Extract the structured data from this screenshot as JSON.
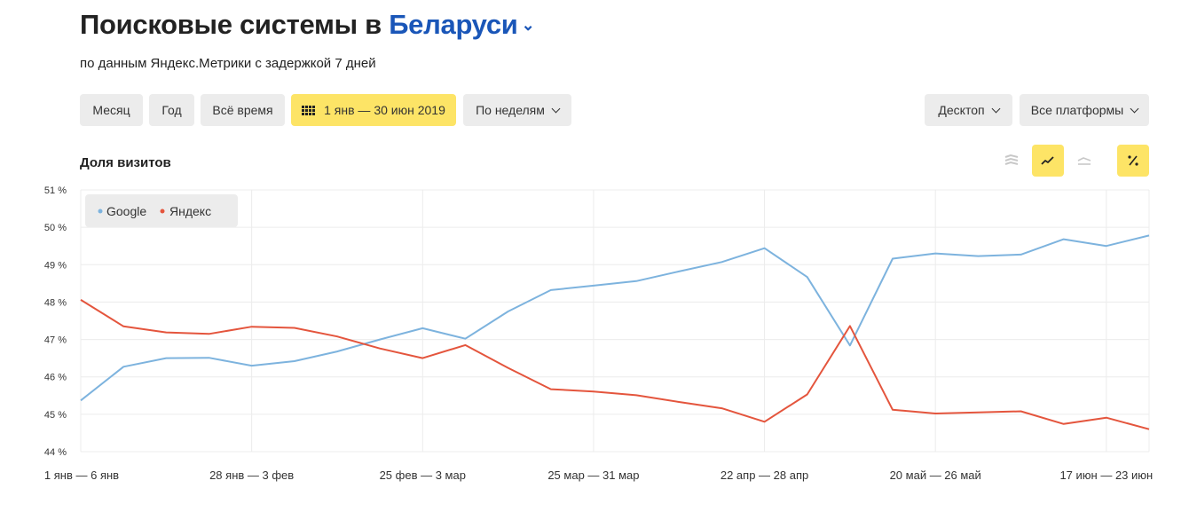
{
  "header": {
    "title_prefix": "Поисковые системы в",
    "region": "Беларуси",
    "subtitle": "по данным Яндекс.Метрики с задержкой 7 дней"
  },
  "toolbar": {
    "month": "Месяц",
    "year": "Год",
    "all_time": "Всё время",
    "date_range": "1 янв — 30 июн 2019",
    "grouping": "По неделям",
    "device": "Десктоп",
    "platform": "Все платформы"
  },
  "chart_header": {
    "title": "Доля визитов",
    "icons": [
      "stacked-area-icon",
      "line-chart-icon",
      "baseline-icon",
      "percent-icon"
    ],
    "active_view": "line-chart-icon",
    "percent_active": true
  },
  "colors": {
    "google": "#7db3de",
    "yandex": "#e4553d",
    "accent": "#fde466",
    "region_link": "#1a56b8"
  },
  "chart_data": {
    "type": "line",
    "title": "",
    "xlabel": "",
    "ylabel": "",
    "ylim": [
      44,
      51
    ],
    "ytick_labels": [
      "44 %",
      "45 %",
      "46 %",
      "47 %",
      "48 %",
      "49 %",
      "50 %",
      "51 %"
    ],
    "xtick_labels": [
      {
        "index": 0,
        "label": "1 янв — 6 янв"
      },
      {
        "index": 4,
        "label": "28 янв — 3 фев"
      },
      {
        "index": 8,
        "label": "25 фев — 3 мар"
      },
      {
        "index": 12,
        "label": "25 мар — 31 мар"
      },
      {
        "index": 16,
        "label": "22 апр — 28 апр"
      },
      {
        "index": 20,
        "label": "20 май — 26 май"
      },
      {
        "index": 24,
        "label": "17 июн — 23 июн"
      }
    ],
    "x_count": 26,
    "grid": true,
    "legend_position": "top-left",
    "series": [
      {
        "name": "Google",
        "color": "#7db3de",
        "values": [
          45.37,
          46.27,
          46.5,
          46.51,
          46.3,
          46.42,
          46.68,
          47.0,
          47.3,
          47.02,
          47.75,
          48.32,
          48.44,
          48.56,
          48.82,
          49.07,
          49.44,
          48.67,
          46.84,
          49.16,
          49.3,
          49.23,
          49.27,
          49.68,
          49.5,
          49.78
        ]
      },
      {
        "name": "Яндекс",
        "color": "#e4553d",
        "values": [
          48.06,
          47.35,
          47.19,
          47.15,
          47.34,
          47.31,
          47.08,
          46.76,
          46.5,
          46.85,
          46.24,
          45.67,
          45.61,
          45.51,
          45.33,
          45.16,
          44.8,
          45.53,
          47.36,
          45.12,
          45.02,
          45.05,
          45.08,
          44.74,
          44.91,
          44.6
        ]
      }
    ]
  }
}
